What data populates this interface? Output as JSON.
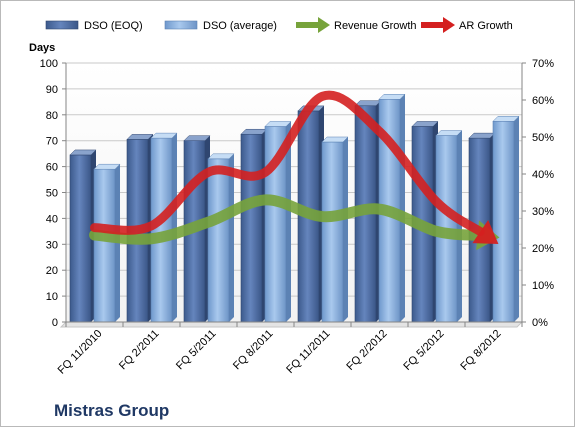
{
  "chart_data": {
    "type": "bar",
    "company": "Mistras Group",
    "ylabel": "Days",
    "categories": [
      "FQ 11/2010",
      "FQ 2/2011",
      "FQ 5/2011",
      "FQ 8/2011",
      "FQ 11/2011",
      "FQ 2/2012",
      "FQ 5/2012",
      "FQ 8/2012"
    ],
    "ylim": [
      0,
      100
    ],
    "yticks": [
      "0",
      "10",
      "20",
      "30",
      "40",
      "50",
      "60",
      "70",
      "80",
      "90",
      "100"
    ],
    "y2lim": [
      0,
      70
    ],
    "y2ticks": [
      "0%",
      "10%",
      "20%",
      "30%",
      "40%",
      "50%",
      "60%",
      "70%"
    ],
    "grid": true,
    "legend_position": "top",
    "series": [
      {
        "name": "DSO (EOQ)",
        "kind": "bar",
        "color": "#4f6fa5",
        "values": [
          64.5,
          70.5,
          70,
          72.5,
          81.5,
          83.5,
          75.5,
          71
        ]
      },
      {
        "name": "DSO (average)",
        "kind": "bar",
        "color": "#8db3e2",
        "values": [
          59,
          71,
          63,
          75.5,
          69.5,
          86,
          72,
          77.5
        ]
      },
      {
        "name": "Revenue Growth",
        "kind": "line-arrow",
        "axis": "right",
        "color": "#77a33b",
        "values": [
          23.5,
          22.5,
          27,
          33,
          28.5,
          30.5,
          24.5,
          23
        ]
      },
      {
        "name": "AR Growth",
        "kind": "line-arrow",
        "axis": "right",
        "color": "#d42020",
        "values": [
          25.5,
          26,
          40.5,
          40.5,
          61,
          51.5,
          32.5,
          22
        ]
      }
    ]
  }
}
